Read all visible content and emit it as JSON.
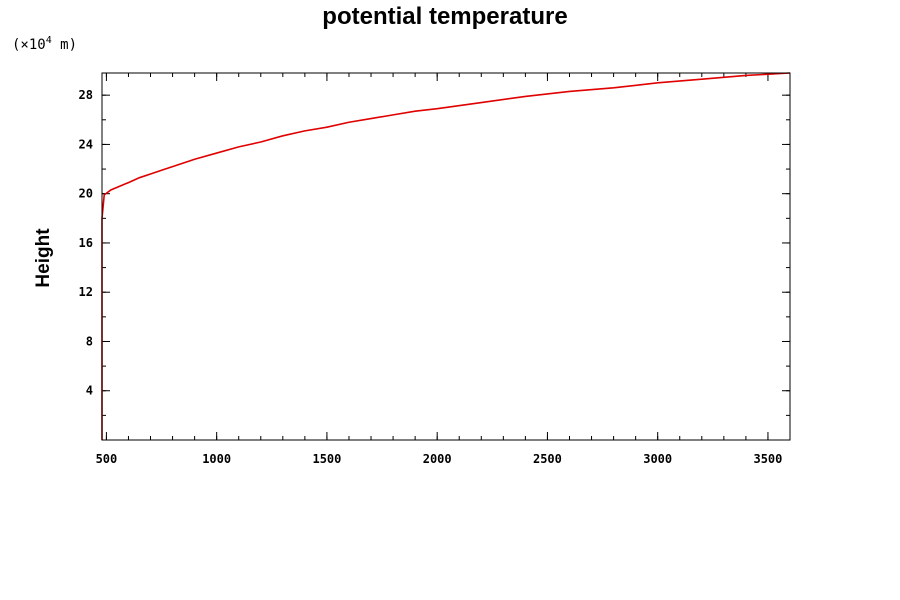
{
  "chart_data": {
    "type": "line",
    "title": "potential temperature",
    "ylabel": "Height",
    "y_unit": {
      "prefix": "(×10",
      "exponent": "4",
      "suffix": " m)"
    },
    "xlim": [
      480,
      3600
    ],
    "ylim": [
      0,
      29.8
    ],
    "x_ticks": [
      500,
      1000,
      1500,
      2000,
      2500,
      3000,
      3500
    ],
    "x_tick_labels": [
      "500",
      "1000",
      "1500",
      "2000",
      "2500",
      "3000",
      "3500"
    ],
    "x_minor_step": 100,
    "y_ticks": [
      4,
      8,
      12,
      16,
      20,
      24,
      28
    ],
    "y_tick_labels": [
      "4",
      "8",
      "12",
      "16",
      "20",
      "24",
      "28"
    ],
    "y_minor_step": 2,
    "grid": false,
    "line_color": "#e00000",
    "series": [
      {
        "x": [
          480,
          480,
          480,
          480,
          480,
          480,
          480,
          480,
          480,
          480,
          490,
          520,
          560,
          600,
          650,
          700,
          750,
          800,
          900,
          1000,
          1100,
          1200,
          1300,
          1400,
          1500,
          1600,
          1700,
          1800,
          1900,
          2000,
          2200,
          2400,
          2600,
          2800,
          3000,
          3200,
          3400,
          3600
        ],
        "y": [
          0,
          2,
          4,
          6,
          8,
          10,
          12,
          14,
          16,
          18,
          19.9,
          20.3,
          20.6,
          20.9,
          21.3,
          21.6,
          21.9,
          22.2,
          22.8,
          23.3,
          23.8,
          24.2,
          24.7,
          25.1,
          25.4,
          25.8,
          26.1,
          26.4,
          26.7,
          26.9,
          27.4,
          27.9,
          28.3,
          28.6,
          29.0,
          29.3,
          29.6,
          29.8
        ]
      }
    ]
  }
}
